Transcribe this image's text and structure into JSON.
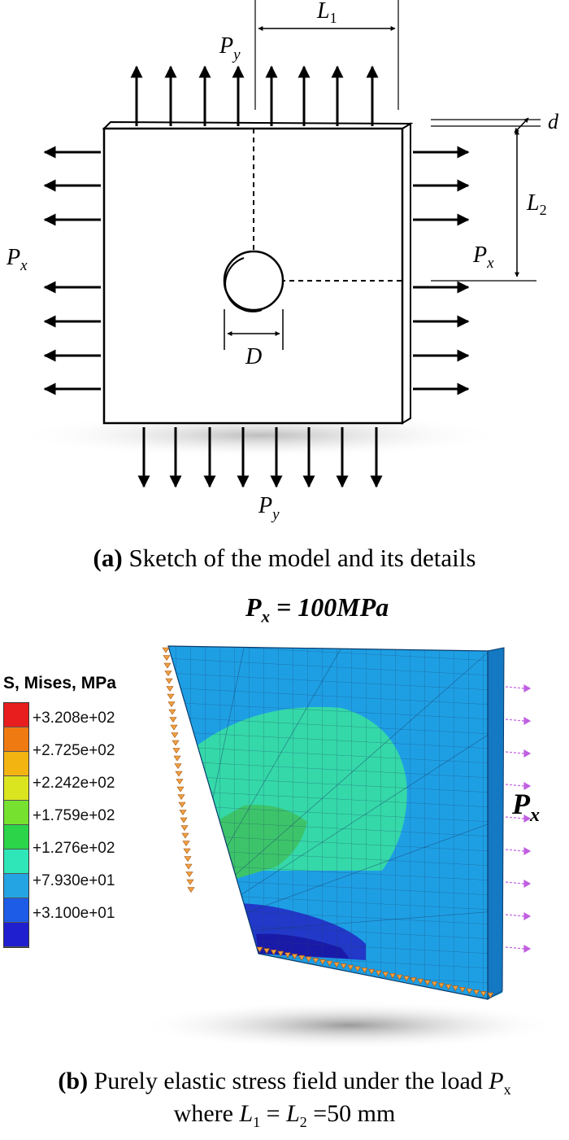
{
  "sketch": {
    "labels": {
      "py_top": "P",
      "py_top_sub": "y",
      "py_bottom": "P",
      "py_bottom_sub": "y",
      "px_left": "P",
      "px_left_sub": "x",
      "px_right": "P",
      "px_right_sub": "x",
      "l1": "L",
      "l1_sub": "1",
      "l2": "L",
      "l2_sub": "2",
      "d_small": "d",
      "d_big": "D"
    },
    "caption_tag": "(a)",
    "caption_text": " Sketch of the model and its details"
  },
  "fea": {
    "load_title": "P",
    "load_title_sub": "x",
    "load_title_value": " = 100MPa",
    "px_label": "P",
    "px_label_sub": "x",
    "legend": {
      "title": "S, Mises, MPa",
      "entries": [
        "+3.208e+02",
        "+2.725e+02",
        "+2.242e+02",
        "+1.759e+02",
        "+1.276e+02",
        "+7.930e+01",
        "+3.100e+01"
      ],
      "colors": [
        "#e81e1e",
        "#f07a12",
        "#f3b412",
        "#dbe51f",
        "#76e12f",
        "#2bd449",
        "#2ee6b8",
        "#24a4e2",
        "#1c5ce6",
        "#1f1fd0"
      ]
    },
    "caption_tag": "(b)",
    "caption_line1": " Purely elastic stress field under the load ",
    "caption_load": "P",
    "caption_load_sub": "x",
    "caption_line2_a": "where ",
    "caption_line2_l1": "L",
    "caption_line2_l1_sub": "1",
    "caption_line2_eq": " = ",
    "caption_line2_l2": "L",
    "caption_line2_l2_sub": "2",
    "caption_line2_b": " =50 mm"
  },
  "colors": {
    "plate_blue": "#1e9fe4",
    "plate_edge": "#1478c2",
    "zone_teal": "#35d8a8",
    "zone_green": "#3dc46a",
    "zone_dark": "#2238c8",
    "arrow_pink": "#c060e0",
    "bc_orange": "#f0a040"
  }
}
